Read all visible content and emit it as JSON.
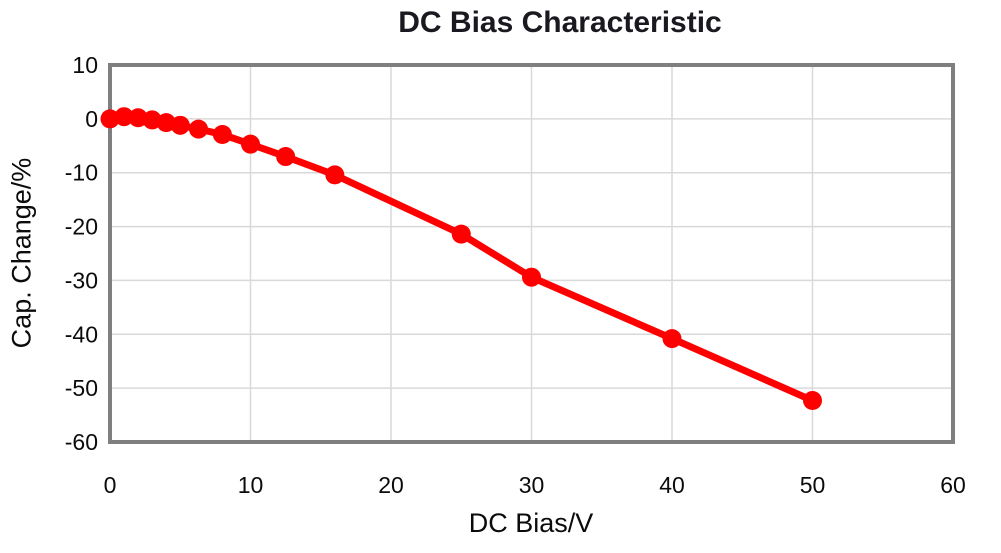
{
  "chart_data": {
    "type": "line",
    "title": "DC Bias Characteristic",
    "xlabel": "DC Bias/V",
    "ylabel": "Cap. Change/%",
    "xlim": [
      0,
      60
    ],
    "ylim": [
      -60,
      10
    ],
    "x_ticks": [
      0,
      10,
      20,
      30,
      40,
      50,
      60
    ],
    "y_ticks": [
      10,
      0,
      -10,
      -20,
      -30,
      -40,
      -50,
      -60
    ],
    "grid": true,
    "legend": "none",
    "series": [
      {
        "name": "Cap. Change",
        "x": [
          0,
          1,
          2,
          3,
          4,
          5,
          6.3,
          8,
          10,
          12.5,
          16,
          25,
          30,
          40,
          50
        ],
        "y": [
          0,
          0.4,
          0.2,
          -0.2,
          -0.7,
          -1.2,
          -1.9,
          -2.9,
          -4.7,
          -7.0,
          -10.4,
          -21.4,
          -29.4,
          -40.8,
          -52.3
        ],
        "marker": "circle"
      }
    ],
    "colors": {
      "line": "#ff0000",
      "marker": "#ff0000",
      "grid": "#d9d9d9",
      "plot_border": "#7f7f7f",
      "title_text": "#19191f",
      "tick_text": "#0b0b0b",
      "background": "#ffffff"
    }
  }
}
